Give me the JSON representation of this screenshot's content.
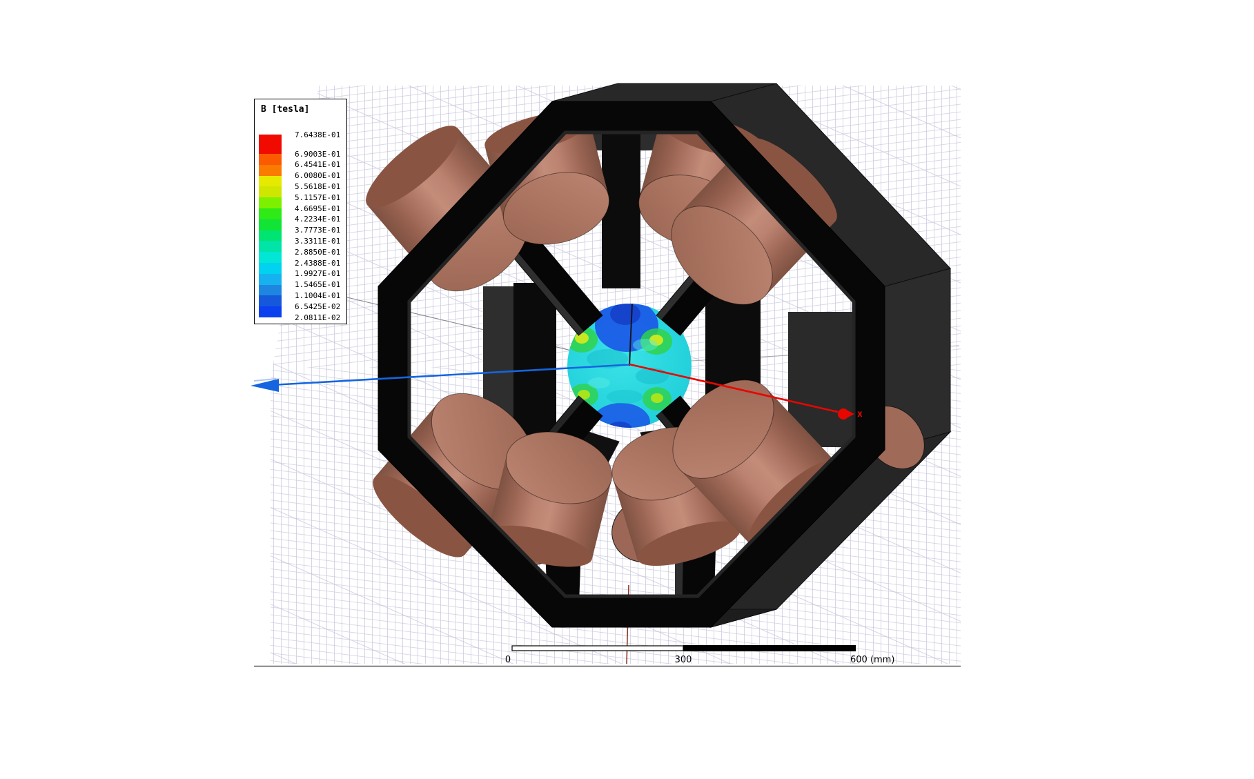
{
  "viewport": {
    "background": "#ffffff",
    "grid_color": "#c9c9df",
    "grid_diag_color": "#c2c2da",
    "bottom_border_color": "#5f5f5f"
  },
  "legend": {
    "title": "B [tesla]",
    "unit_labels": [
      "7.6438E-01",
      "6.9003E-01",
      "6.4541E-01",
      "6.0080E-01",
      "5.5618E-01",
      "5.1157E-01",
      "4.6695E-01",
      "4.2234E-01",
      "3.7773E-01",
      "3.3311E-01",
      "2.8850E-01",
      "2.4388E-01",
      "1.9927E-01",
      "1.5465E-01",
      "1.1004E-01",
      "6.5425E-02",
      "2.0811E-02"
    ],
    "band_colors": [
      "#f00a00",
      "#fb5a00",
      "#fb7a00",
      "#e6ea00",
      "#cfe600",
      "#7df000",
      "#2eea16",
      "#12e436",
      "#00e472",
      "#00e4a8",
      "#02e6d6",
      "#00d2f0",
      "#16b2f0",
      "#1e86e0",
      "#1658dc",
      "#0a40ee"
    ],
    "top_band_height": 28,
    "band_height": 15.8
  },
  "axes": {
    "x_label": "x",
    "x_color": "#e80600",
    "y_color": "#1565e0",
    "z_color": "#15151f",
    "neg_axis_color": "#8c8c94",
    "neg_z_color": "#8a3a2c"
  },
  "scale_bar": {
    "label_start": "0",
    "label_mid": "300",
    "label_end": "600 (mm)"
  },
  "model": {
    "frame_face_color": "#070707",
    "frame_wall_color": "#282828",
    "frame_bevel_color": "#2d2d2d",
    "coil_base_color": "#a97160",
    "coil_highlight_color": "#c38d7a",
    "coil_shadow_color": "#7e5242",
    "sphere_base_color": "#2ad8de"
  }
}
